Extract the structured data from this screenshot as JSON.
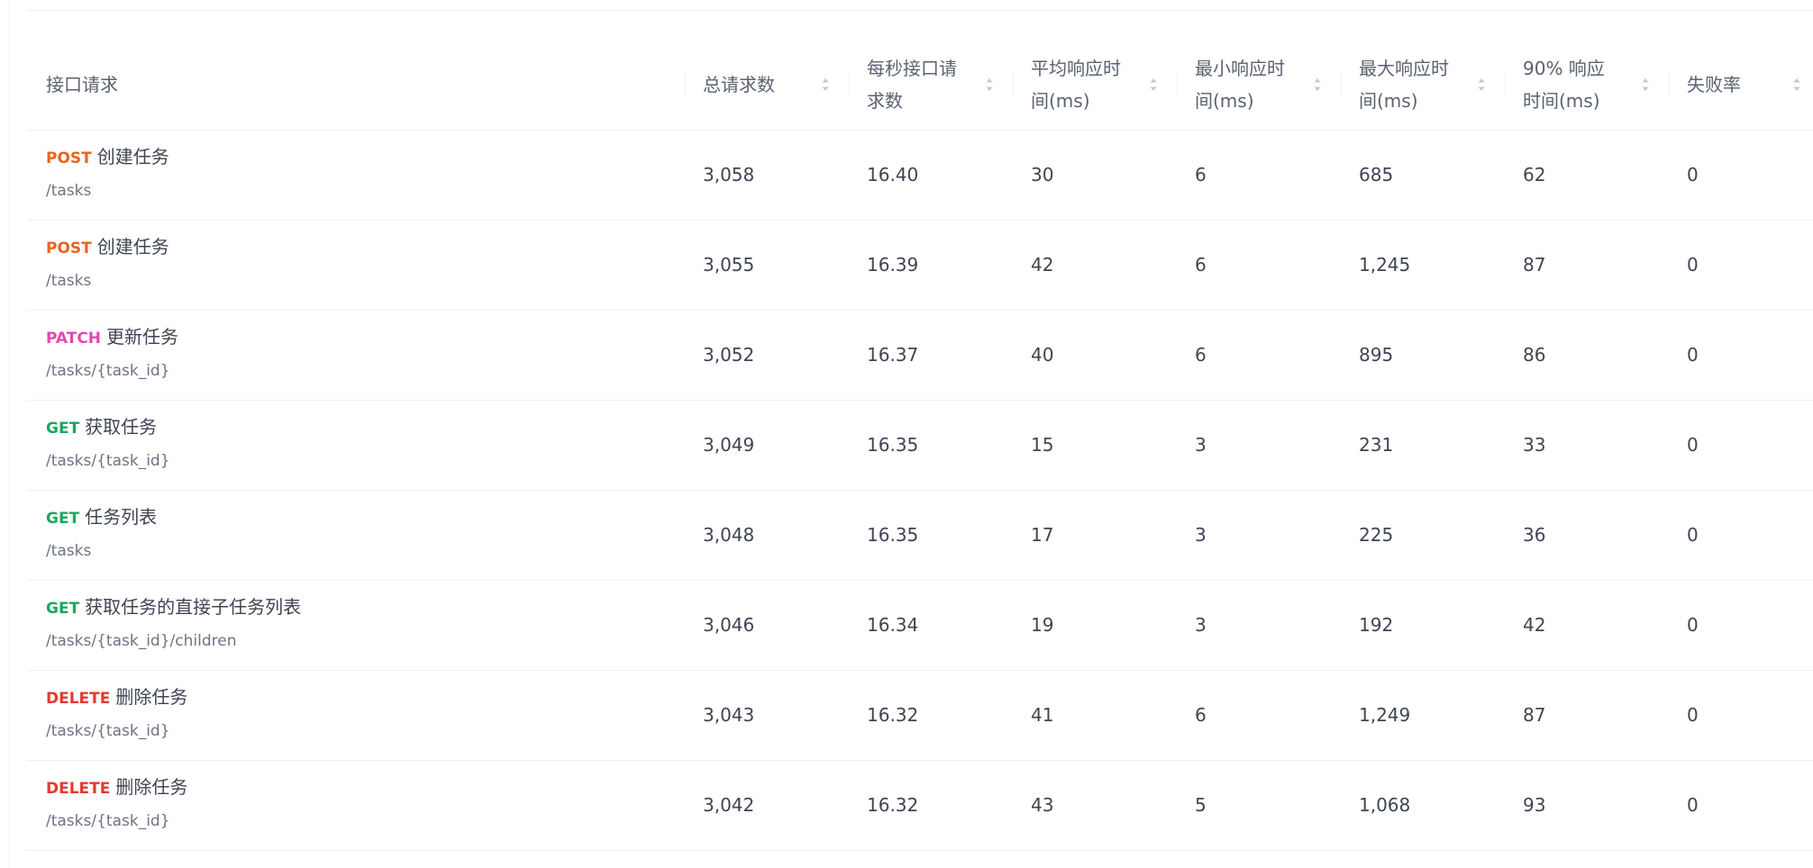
{
  "table": {
    "headers": [
      {
        "label": "接口请求",
        "sortable": false
      },
      {
        "label": "总请求数",
        "sortable": true
      },
      {
        "label": "每秒接口请求数",
        "sortable": true
      },
      {
        "label": "平均响应时间(ms)",
        "sortable": true
      },
      {
        "label": "最小响应时间(ms)",
        "sortable": true
      },
      {
        "label": "最大响应时间(ms)",
        "sortable": true
      },
      {
        "label": "90% 响应时间(ms)",
        "sortable": true
      },
      {
        "label": "失败率",
        "sortable": true
      }
    ],
    "rows": [
      {
        "method": "POST",
        "name": "创建任务",
        "path": "/tasks",
        "total": "3,058",
        "rps": "16.40",
        "avg": "30",
        "min": "6",
        "max": "685",
        "p90": "62",
        "fail": "0"
      },
      {
        "method": "POST",
        "name": "创建任务",
        "path": "/tasks",
        "total": "3,055",
        "rps": "16.39",
        "avg": "42",
        "min": "6",
        "max": "1,245",
        "p90": "87",
        "fail": "0"
      },
      {
        "method": "PATCH",
        "name": "更新任务",
        "path": "/tasks/{task_id}",
        "total": "3,052",
        "rps": "16.37",
        "avg": "40",
        "min": "6",
        "max": "895",
        "p90": "86",
        "fail": "0"
      },
      {
        "method": "GET",
        "name": "获取任务",
        "path": "/tasks/{task_id}",
        "total": "3,049",
        "rps": "16.35",
        "avg": "15",
        "min": "3",
        "max": "231",
        "p90": "33",
        "fail": "0"
      },
      {
        "method": "GET",
        "name": "任务列表",
        "path": "/tasks",
        "total": "3,048",
        "rps": "16.35",
        "avg": "17",
        "min": "3",
        "max": "225",
        "p90": "36",
        "fail": "0"
      },
      {
        "method": "GET",
        "name": "获取任务的直接子任务列表",
        "path": "/tasks/{task_id}/children",
        "total": "3,046",
        "rps": "16.34",
        "avg": "19",
        "min": "3",
        "max": "192",
        "p90": "42",
        "fail": "0"
      },
      {
        "method": "DELETE",
        "name": "删除任务",
        "path": "/tasks/{task_id}",
        "total": "3,043",
        "rps": "16.32",
        "avg": "41",
        "min": "6",
        "max": "1,249",
        "p90": "87",
        "fail": "0"
      },
      {
        "method": "DELETE",
        "name": "删除任务",
        "path": "/tasks/{task_id}",
        "total": "3,042",
        "rps": "16.32",
        "avg": "43",
        "min": "5",
        "max": "1,068",
        "p90": "93",
        "fail": "0"
      }
    ]
  },
  "colors": {
    "POST": "#e9641e",
    "PATCH": "#e447b3",
    "GET": "#1aa85f",
    "DELETE": "#e6392f"
  }
}
